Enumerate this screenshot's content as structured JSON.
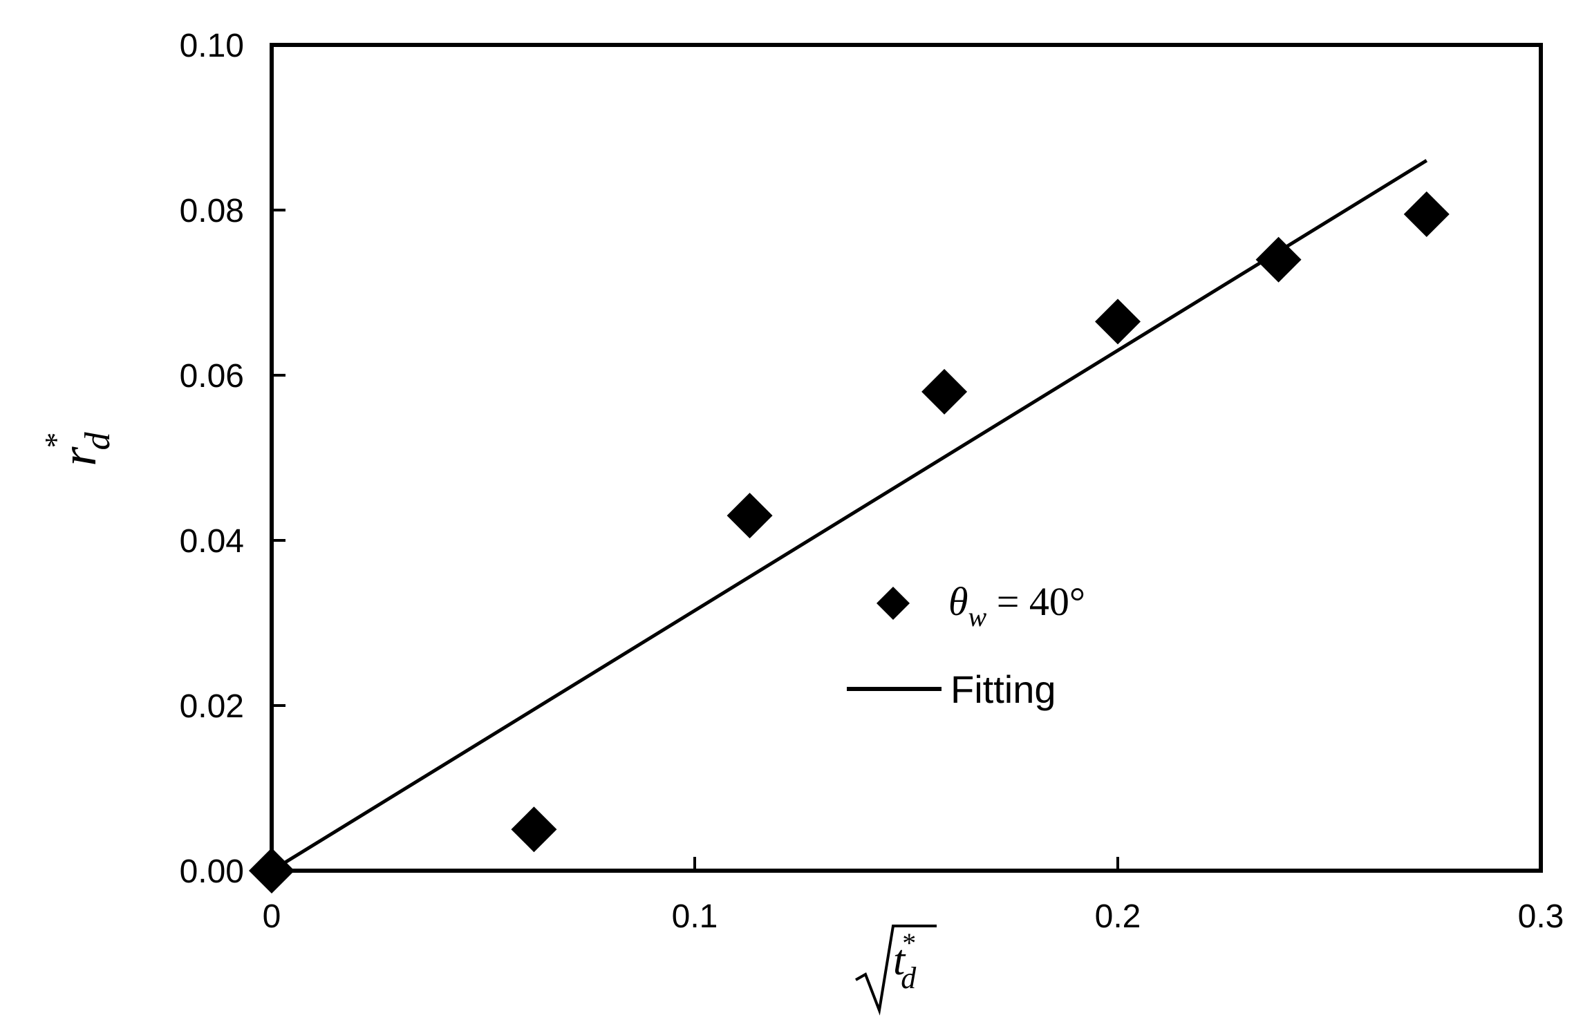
{
  "chart_data": {
    "type": "scatter",
    "title": "",
    "xlabel": "√t_d*",
    "ylabel": "r_d*",
    "xlim": [
      0,
      0.3
    ],
    "ylim": [
      0,
      0.1
    ],
    "x_ticks": [
      "0",
      "0.1",
      "0.2",
      "0.3"
    ],
    "y_ticks": [
      "0.00",
      "0.02",
      "0.04",
      "0.06",
      "0.08",
      "0.10"
    ],
    "grid": false,
    "legend_position": "center-right",
    "series": [
      {
        "name": "θw = 40°",
        "legend_label": {
          "symbol": "θ",
          "subscript": "w",
          "rest": " = 40°"
        },
        "kind": "scatter",
        "marker": "diamond",
        "color": "#000000",
        "points": [
          {
            "x": 0.0,
            "y": 0.0
          },
          {
            "x": 0.062,
            "y": 0.005
          },
          {
            "x": 0.113,
            "y": 0.043
          },
          {
            "x": 0.159,
            "y": 0.058
          },
          {
            "x": 0.2,
            "y": 0.0665
          },
          {
            "x": 0.238,
            "y": 0.074
          },
          {
            "x": 0.273,
            "y": 0.0795
          }
        ]
      },
      {
        "name": "Fitting",
        "kind": "line",
        "color": "#000000",
        "points": [
          {
            "x": 0.0,
            "y": 0.0
          },
          {
            "x": 0.273,
            "y": 0.086
          }
        ]
      }
    ],
    "axis_label_parts": {
      "x": {
        "symbol": "t",
        "subscript": "d",
        "superscript": "*"
      },
      "y": {
        "symbol": "r",
        "subscript": "d",
        "superscript": "*"
      }
    }
  }
}
